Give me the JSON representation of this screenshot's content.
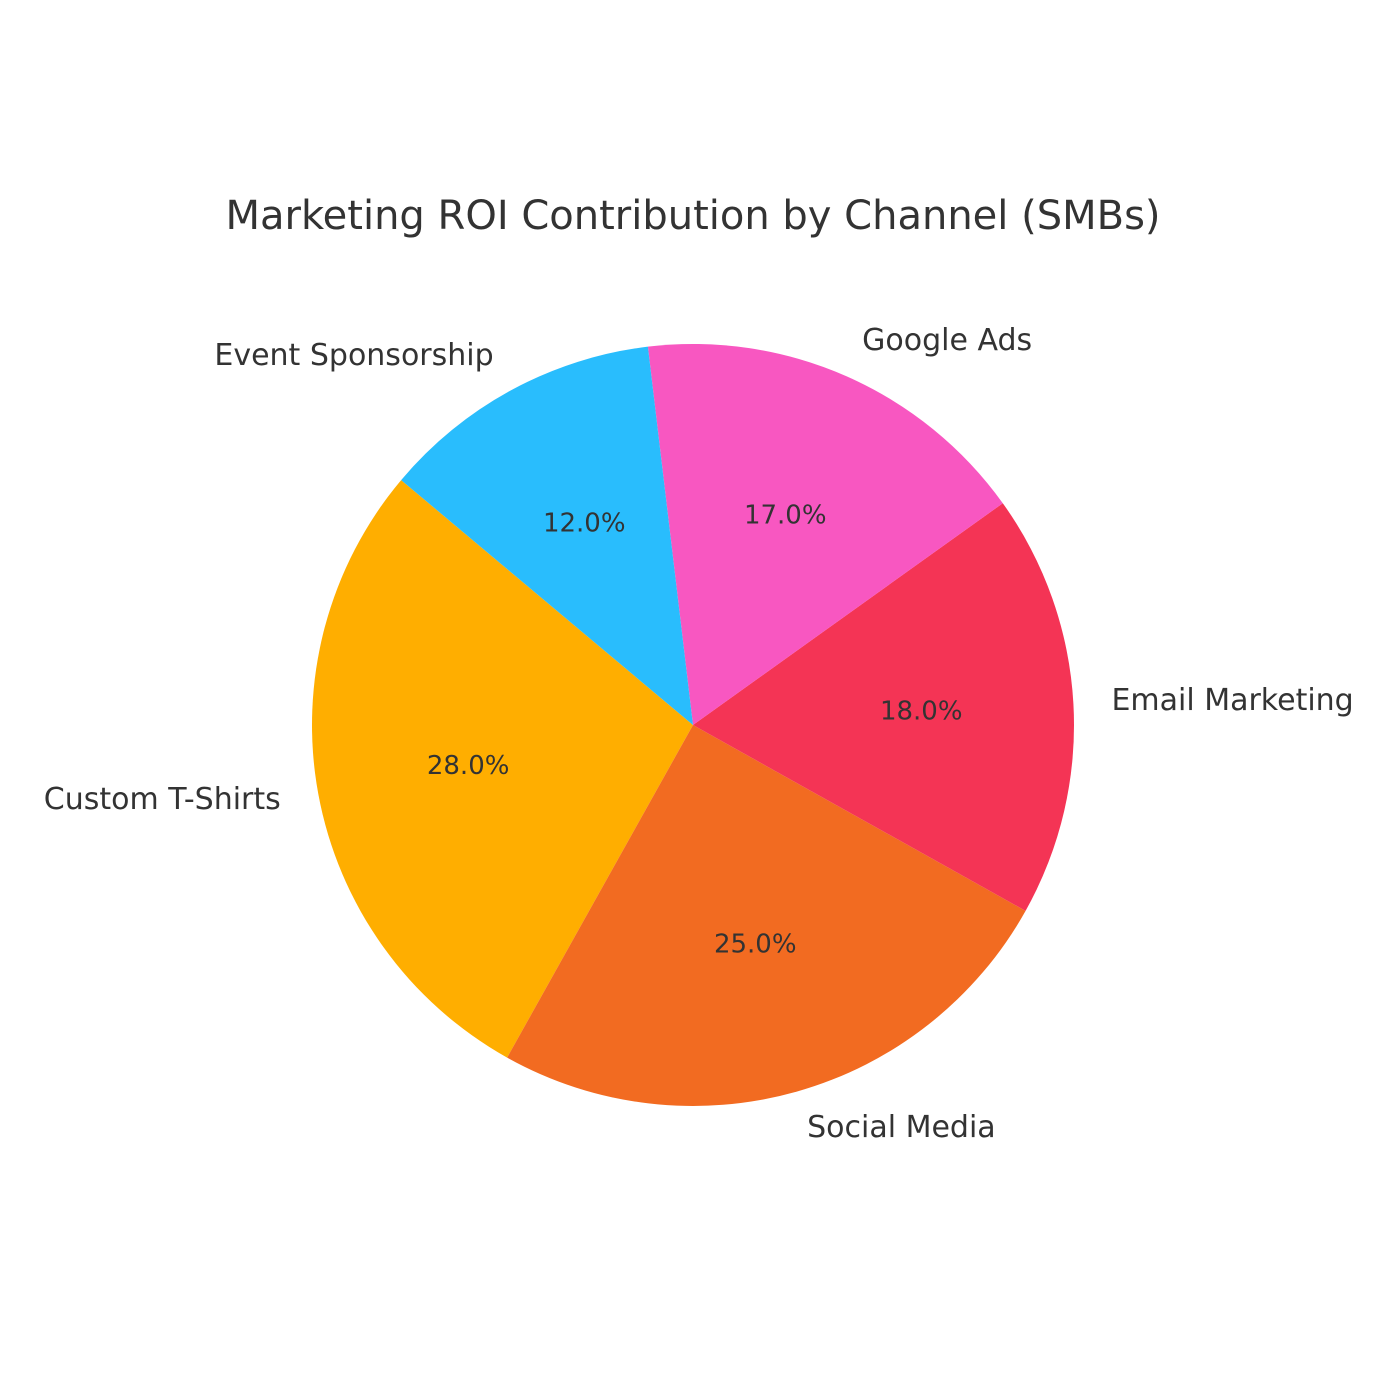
{
  "chart_data": {
    "type": "pie",
    "title": "Marketing ROI Contribution by Channel (SMBs)",
    "categories": [
      "Custom T-Shirts",
      "Social Media",
      "Email Marketing",
      "Google Ads",
      "Event Sponsorship"
    ],
    "values": [
      28,
      25,
      18,
      17,
      12
    ],
    "value_labels": [
      "28.0%",
      "25.0%",
      "18.0%",
      "17.0%",
      "12.0%"
    ],
    "colors": [
      "#FFAE00",
      "#F26B21",
      "#F43455",
      "#F857C1",
      "#29BDFD"
    ],
    "startangle": 140,
    "counterclock": true
  }
}
